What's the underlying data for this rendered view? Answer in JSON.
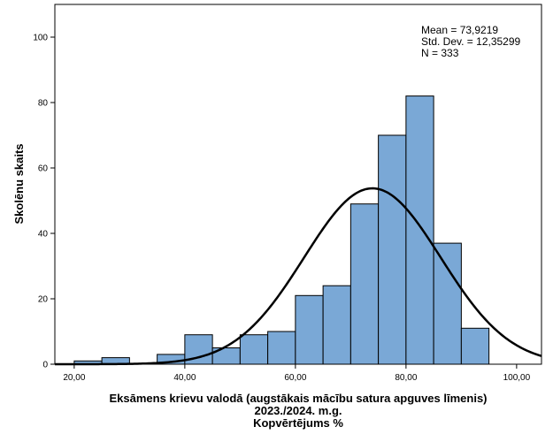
{
  "chart_data": {
    "type": "bar",
    "subtype": "histogram",
    "ylabel": "Skolēnu skaits",
    "xlabel_lines": [
      "Eksāmens krievu valodā (augstākais mācību satura apguves līmenis)",
      "2023./2024. m.g.",
      "Kopvērtējums %"
    ],
    "stats_lines": [
      "Mean = 73,9219",
      "Std. Dev. = 12,35299",
      "N = 333"
    ],
    "mean": 73.9219,
    "std_dev": 12.35299,
    "n": 333,
    "bin_width": 5,
    "bins": [
      {
        "x0": 20,
        "x1": 25,
        "count": 1
      },
      {
        "x0": 25,
        "x1": 30,
        "count": 2
      },
      {
        "x0": 35,
        "x1": 40,
        "count": 3
      },
      {
        "x0": 40,
        "x1": 45,
        "count": 9
      },
      {
        "x0": 45,
        "x1": 50,
        "count": 5
      },
      {
        "x0": 50,
        "x1": 55,
        "count": 9
      },
      {
        "x0": 55,
        "x1": 60,
        "count": 10
      },
      {
        "x0": 60,
        "x1": 65,
        "count": 21
      },
      {
        "x0": 65,
        "x1": 70,
        "count": 24
      },
      {
        "x0": 70,
        "x1": 75,
        "count": 49
      },
      {
        "x0": 75,
        "x1": 80,
        "count": 70
      },
      {
        "x0": 80,
        "x1": 85,
        "count": 82
      },
      {
        "x0": 85,
        "x1": 90,
        "count": 37
      },
      {
        "x0": 90,
        "x1": 95,
        "count": 11
      }
    ],
    "xlim": [
      16.5,
      104.5
    ],
    "ylim": [
      0,
      110
    ],
    "x_ticks": [
      20,
      40,
      60,
      80,
      100
    ],
    "x_tick_labels": [
      "20,00",
      "40,00",
      "60,00",
      "80,00",
      "100,00"
    ],
    "y_ticks": [
      0,
      20,
      40,
      60,
      80,
      100
    ],
    "y_tick_labels": [
      "0",
      "20",
      "40",
      "60",
      "80",
      "100"
    ],
    "normal_curve": true,
    "grid": false,
    "bar_color": "#7aa8d6",
    "bar_edge_color": "#000000",
    "curve_color": "#000000"
  }
}
